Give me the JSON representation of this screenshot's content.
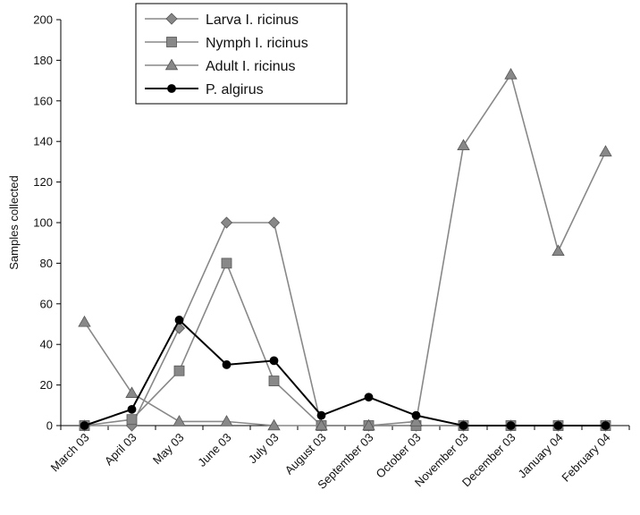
{
  "chart_data": {
    "type": "line",
    "title": "",
    "xlabel": "",
    "ylabel": "Samples collected",
    "ylim": [
      0,
      200
    ],
    "yticks": [
      0,
      20,
      40,
      60,
      80,
      100,
      120,
      140,
      160,
      180,
      200
    ],
    "grid": false,
    "legend_position": "top",
    "categories": [
      "March 03",
      "April 03",
      "May 03",
      "June 03",
      "July 03",
      "August 03",
      "September 03",
      "October 03",
      "November 03",
      "December 03",
      "January 04",
      "February 04"
    ],
    "series": [
      {
        "name": "Larva I. ricinus",
        "marker": "diamond",
        "color": "#888888",
        "values": [
          0,
          0,
          48,
          100,
          100,
          0,
          0,
          0,
          0,
          0,
          0,
          0
        ]
      },
      {
        "name": "Nymph I. ricinus",
        "marker": "square",
        "color": "#888888",
        "values": [
          0,
          3,
          27,
          80,
          22,
          0,
          0,
          0,
          0,
          0,
          0,
          0
        ]
      },
      {
        "name": "Adult I. ricinus",
        "marker": "triangle",
        "color": "#888888",
        "values": [
          51,
          16,
          2,
          2,
          0,
          0,
          0,
          2,
          138,
          173,
          86,
          135
        ]
      },
      {
        "name": "P. algirus",
        "marker": "circle",
        "color": "#000000",
        "values": [
          0,
          8,
          52,
          30,
          32,
          5,
          14,
          5,
          0,
          0,
          0,
          0
        ]
      }
    ]
  }
}
